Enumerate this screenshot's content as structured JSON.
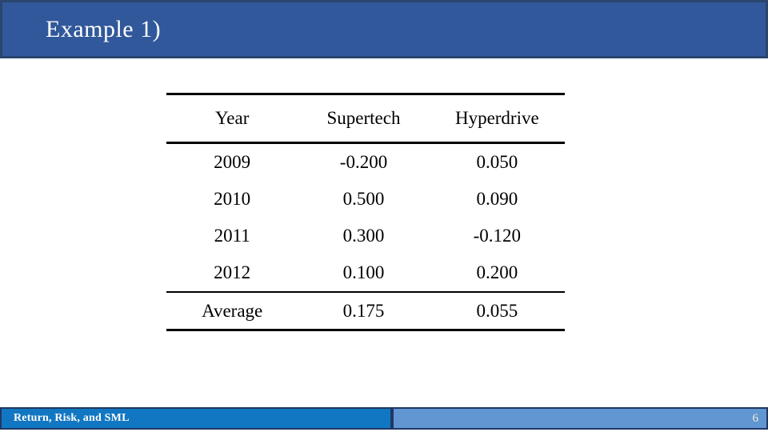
{
  "header": {
    "title": "Example 1)"
  },
  "table": {
    "columns": [
      "Year",
      "Supertech",
      "Hyperdrive"
    ],
    "rows": [
      [
        "2009",
        "-0.200",
        "0.050"
      ],
      [
        "2010",
        "0.500",
        "0.090"
      ],
      [
        "2011",
        "0.300",
        "-0.120"
      ],
      [
        "2012",
        "0.100",
        "0.200"
      ]
    ],
    "summary": [
      "Average",
      "0.175",
      "0.055"
    ]
  },
  "footer": {
    "label": "Return, Risk, and SML",
    "page_number": "6"
  },
  "colors": {
    "header_bg": "#31589B",
    "header_border": "#2A456F",
    "footer_left_bg": "#1277C2",
    "footer_right_bg": "#6096D2",
    "footer_border": "#1F3864",
    "table_text": "#000000",
    "title_text": "#FEFEFE"
  }
}
